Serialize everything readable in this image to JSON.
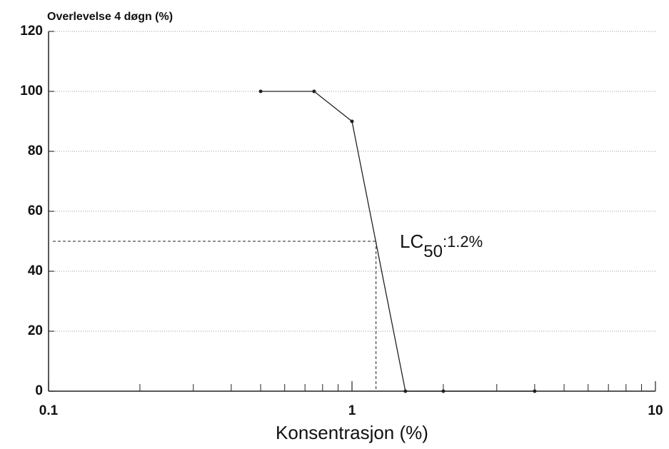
{
  "chart_data": {
    "type": "line",
    "ylabel": "Overlevelse 4 døgn (%)",
    "xlabel": "Konsentrasjon (%)",
    "x": [
      0.5,
      0.75,
      1.0,
      1.5,
      2,
      4
    ],
    "series": [
      {
        "color": "#222",
        "values": [
          100,
          100,
          90,
          0,
          0,
          0
        ]
      }
    ],
    "xlog": true,
    "xlim": [
      0.1,
      10
    ],
    "xticks": [
      0.1,
      1,
      10
    ],
    "xminor_ticks": [
      0.2,
      0.3,
      0.4,
      0.5,
      0.6,
      0.7,
      0.8,
      0.9,
      2,
      3,
      4,
      5,
      6,
      7,
      8,
      9
    ],
    "ylim": [
      0,
      120
    ],
    "yticks": [
      0,
      20,
      40,
      60,
      80,
      100,
      120
    ],
    "grid": true,
    "reference": {
      "x": 1.2,
      "y": 50
    },
    "annotation": {
      "main": "LC",
      "sub": "50",
      "rest": ":1.2%"
    }
  }
}
